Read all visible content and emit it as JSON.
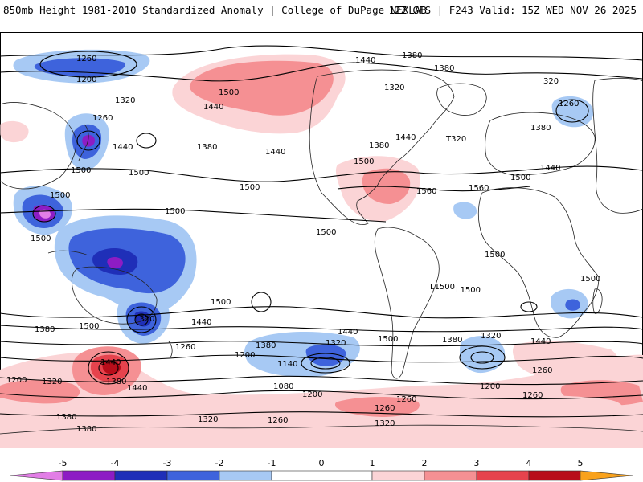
{
  "header": {
    "title_left": "850mb Height 1981-2010 Standardized Anomaly | College of DuPage NEXLAB",
    "title_right": "12Z GFS | F243 Valid: 15Z WED NOV 26 2025"
  },
  "legend": {
    "ticks": [
      "-5",
      "-4",
      "-3",
      "-2",
      "-1",
      "0",
      "1",
      "2",
      "3",
      "4",
      "5"
    ],
    "colors": {
      "n5": "#e27ee6",
      "n4": "#8d1cc4",
      "n3": "#1f2fb8",
      "n2": "#3e63dc",
      "n1": "#a7c9f4",
      "zero": "#ffffff",
      "p1": "#fbd4d6",
      "p2": "#f59093",
      "p3": "#e6434d",
      "p4": "#b80d1a",
      "p5": "#f9a21c"
    }
  },
  "contour_labels": {
    "v1080": "1080",
    "v1140": "1140",
    "v1200": "1200",
    "v1260": "1260",
    "v1320": "1320",
    "v1380": "1380",
    "v1440": "1440",
    "v1500": "1500",
    "v1560": "1560",
    "v320": "320",
    "t320": "T320",
    "l1500a": "L1500",
    "l1500b": "L1500"
  }
}
